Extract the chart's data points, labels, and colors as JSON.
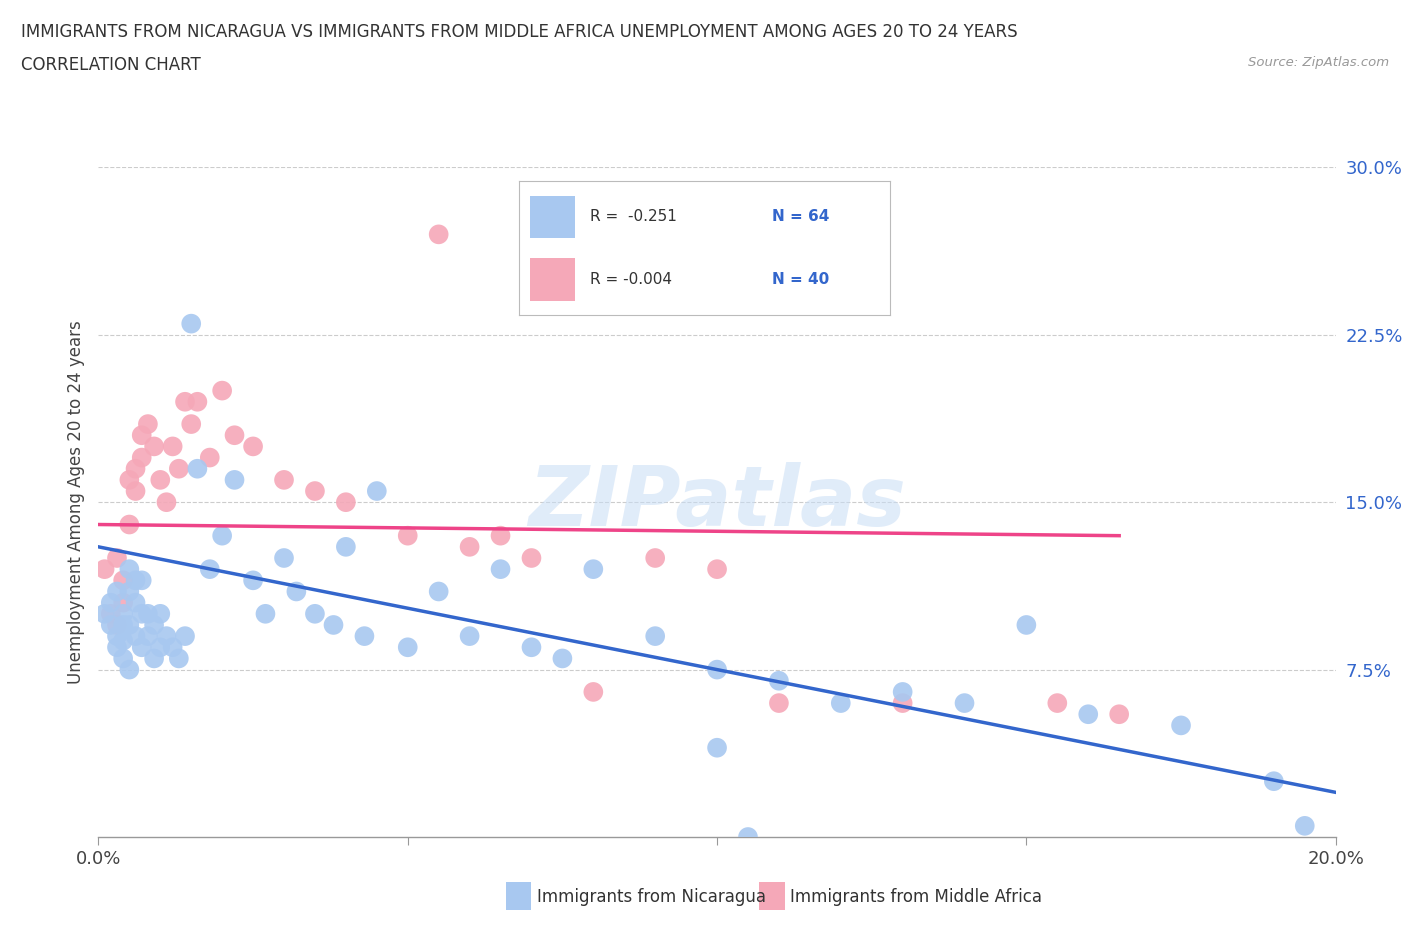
{
  "title_line1": "IMMIGRANTS FROM NICARAGUA VS IMMIGRANTS FROM MIDDLE AFRICA UNEMPLOYMENT AMONG AGES 20 TO 24 YEARS",
  "title_line2": "CORRELATION CHART",
  "source_text": "Source: ZipAtlas.com",
  "ylabel": "Unemployment Among Ages 20 to 24 years",
  "xlim": [
    0.0,
    0.2
  ],
  "ylim": [
    0.0,
    0.3
  ],
  "xticks": [
    0.0,
    0.05,
    0.1,
    0.15,
    0.2
  ],
  "yticks": [
    0.0,
    0.075,
    0.15,
    0.225,
    0.3
  ],
  "yticklabels": [
    "",
    "7.5%",
    "15.0%",
    "22.5%",
    "30.0%"
  ],
  "nicaragua_color": "#a8c8f0",
  "middle_africa_color": "#f5a8b8",
  "nicaragua_line_color": "#3366cc",
  "middle_africa_line_color": "#ee4488",
  "watermark": "ZIPatlas",
  "nicaragua_x": [
    0.001,
    0.002,
    0.002,
    0.003,
    0.003,
    0.003,
    0.004,
    0.004,
    0.004,
    0.004,
    0.005,
    0.005,
    0.005,
    0.005,
    0.006,
    0.006,
    0.006,
    0.007,
    0.007,
    0.007,
    0.008,
    0.008,
    0.009,
    0.009,
    0.01,
    0.01,
    0.011,
    0.012,
    0.013,
    0.014,
    0.015,
    0.016,
    0.018,
    0.02,
    0.022,
    0.025,
    0.027,
    0.03,
    0.032,
    0.035,
    0.038,
    0.04,
    0.043,
    0.045,
    0.05,
    0.055,
    0.06,
    0.065,
    0.07,
    0.075,
    0.08,
    0.09,
    0.1,
    0.11,
    0.12,
    0.13,
    0.14,
    0.15,
    0.16,
    0.175,
    0.19,
    0.195,
    0.1,
    0.105
  ],
  "nicaragua_y": [
    0.1,
    0.105,
    0.095,
    0.11,
    0.09,
    0.085,
    0.1,
    0.095,
    0.088,
    0.08,
    0.12,
    0.11,
    0.095,
    0.075,
    0.115,
    0.105,
    0.09,
    0.115,
    0.1,
    0.085,
    0.1,
    0.09,
    0.095,
    0.08,
    0.1,
    0.085,
    0.09,
    0.085,
    0.08,
    0.09,
    0.23,
    0.165,
    0.12,
    0.135,
    0.16,
    0.115,
    0.1,
    0.125,
    0.11,
    0.1,
    0.095,
    0.13,
    0.09,
    0.155,
    0.085,
    0.11,
    0.09,
    0.12,
    0.085,
    0.08,
    0.12,
    0.09,
    0.075,
    0.07,
    0.06,
    0.065,
    0.06,
    0.095,
    0.055,
    0.05,
    0.025,
    0.005,
    0.04,
    0.0
  ],
  "middle_africa_x": [
    0.001,
    0.002,
    0.003,
    0.003,
    0.004,
    0.004,
    0.005,
    0.005,
    0.006,
    0.006,
    0.007,
    0.007,
    0.008,
    0.009,
    0.01,
    0.011,
    0.012,
    0.013,
    0.014,
    0.015,
    0.016,
    0.018,
    0.02,
    0.022,
    0.025,
    0.03,
    0.035,
    0.04,
    0.05,
    0.055,
    0.06,
    0.065,
    0.07,
    0.08,
    0.09,
    0.1,
    0.11,
    0.13,
    0.155,
    0.165
  ],
  "middle_africa_y": [
    0.12,
    0.1,
    0.125,
    0.095,
    0.115,
    0.105,
    0.16,
    0.14,
    0.165,
    0.155,
    0.18,
    0.17,
    0.185,
    0.175,
    0.16,
    0.15,
    0.175,
    0.165,
    0.195,
    0.185,
    0.195,
    0.17,
    0.2,
    0.18,
    0.175,
    0.16,
    0.155,
    0.15,
    0.135,
    0.27,
    0.13,
    0.135,
    0.125,
    0.065,
    0.125,
    0.12,
    0.06,
    0.06,
    0.06,
    0.055
  ],
  "nic_line_x0": 0.0,
  "nic_line_x1": 0.2,
  "nic_line_y0": 0.13,
  "nic_line_y1": 0.02,
  "ma_line_x0": 0.0,
  "ma_line_x1": 0.165,
  "ma_line_y0": 0.14,
  "ma_line_y1": 0.135
}
